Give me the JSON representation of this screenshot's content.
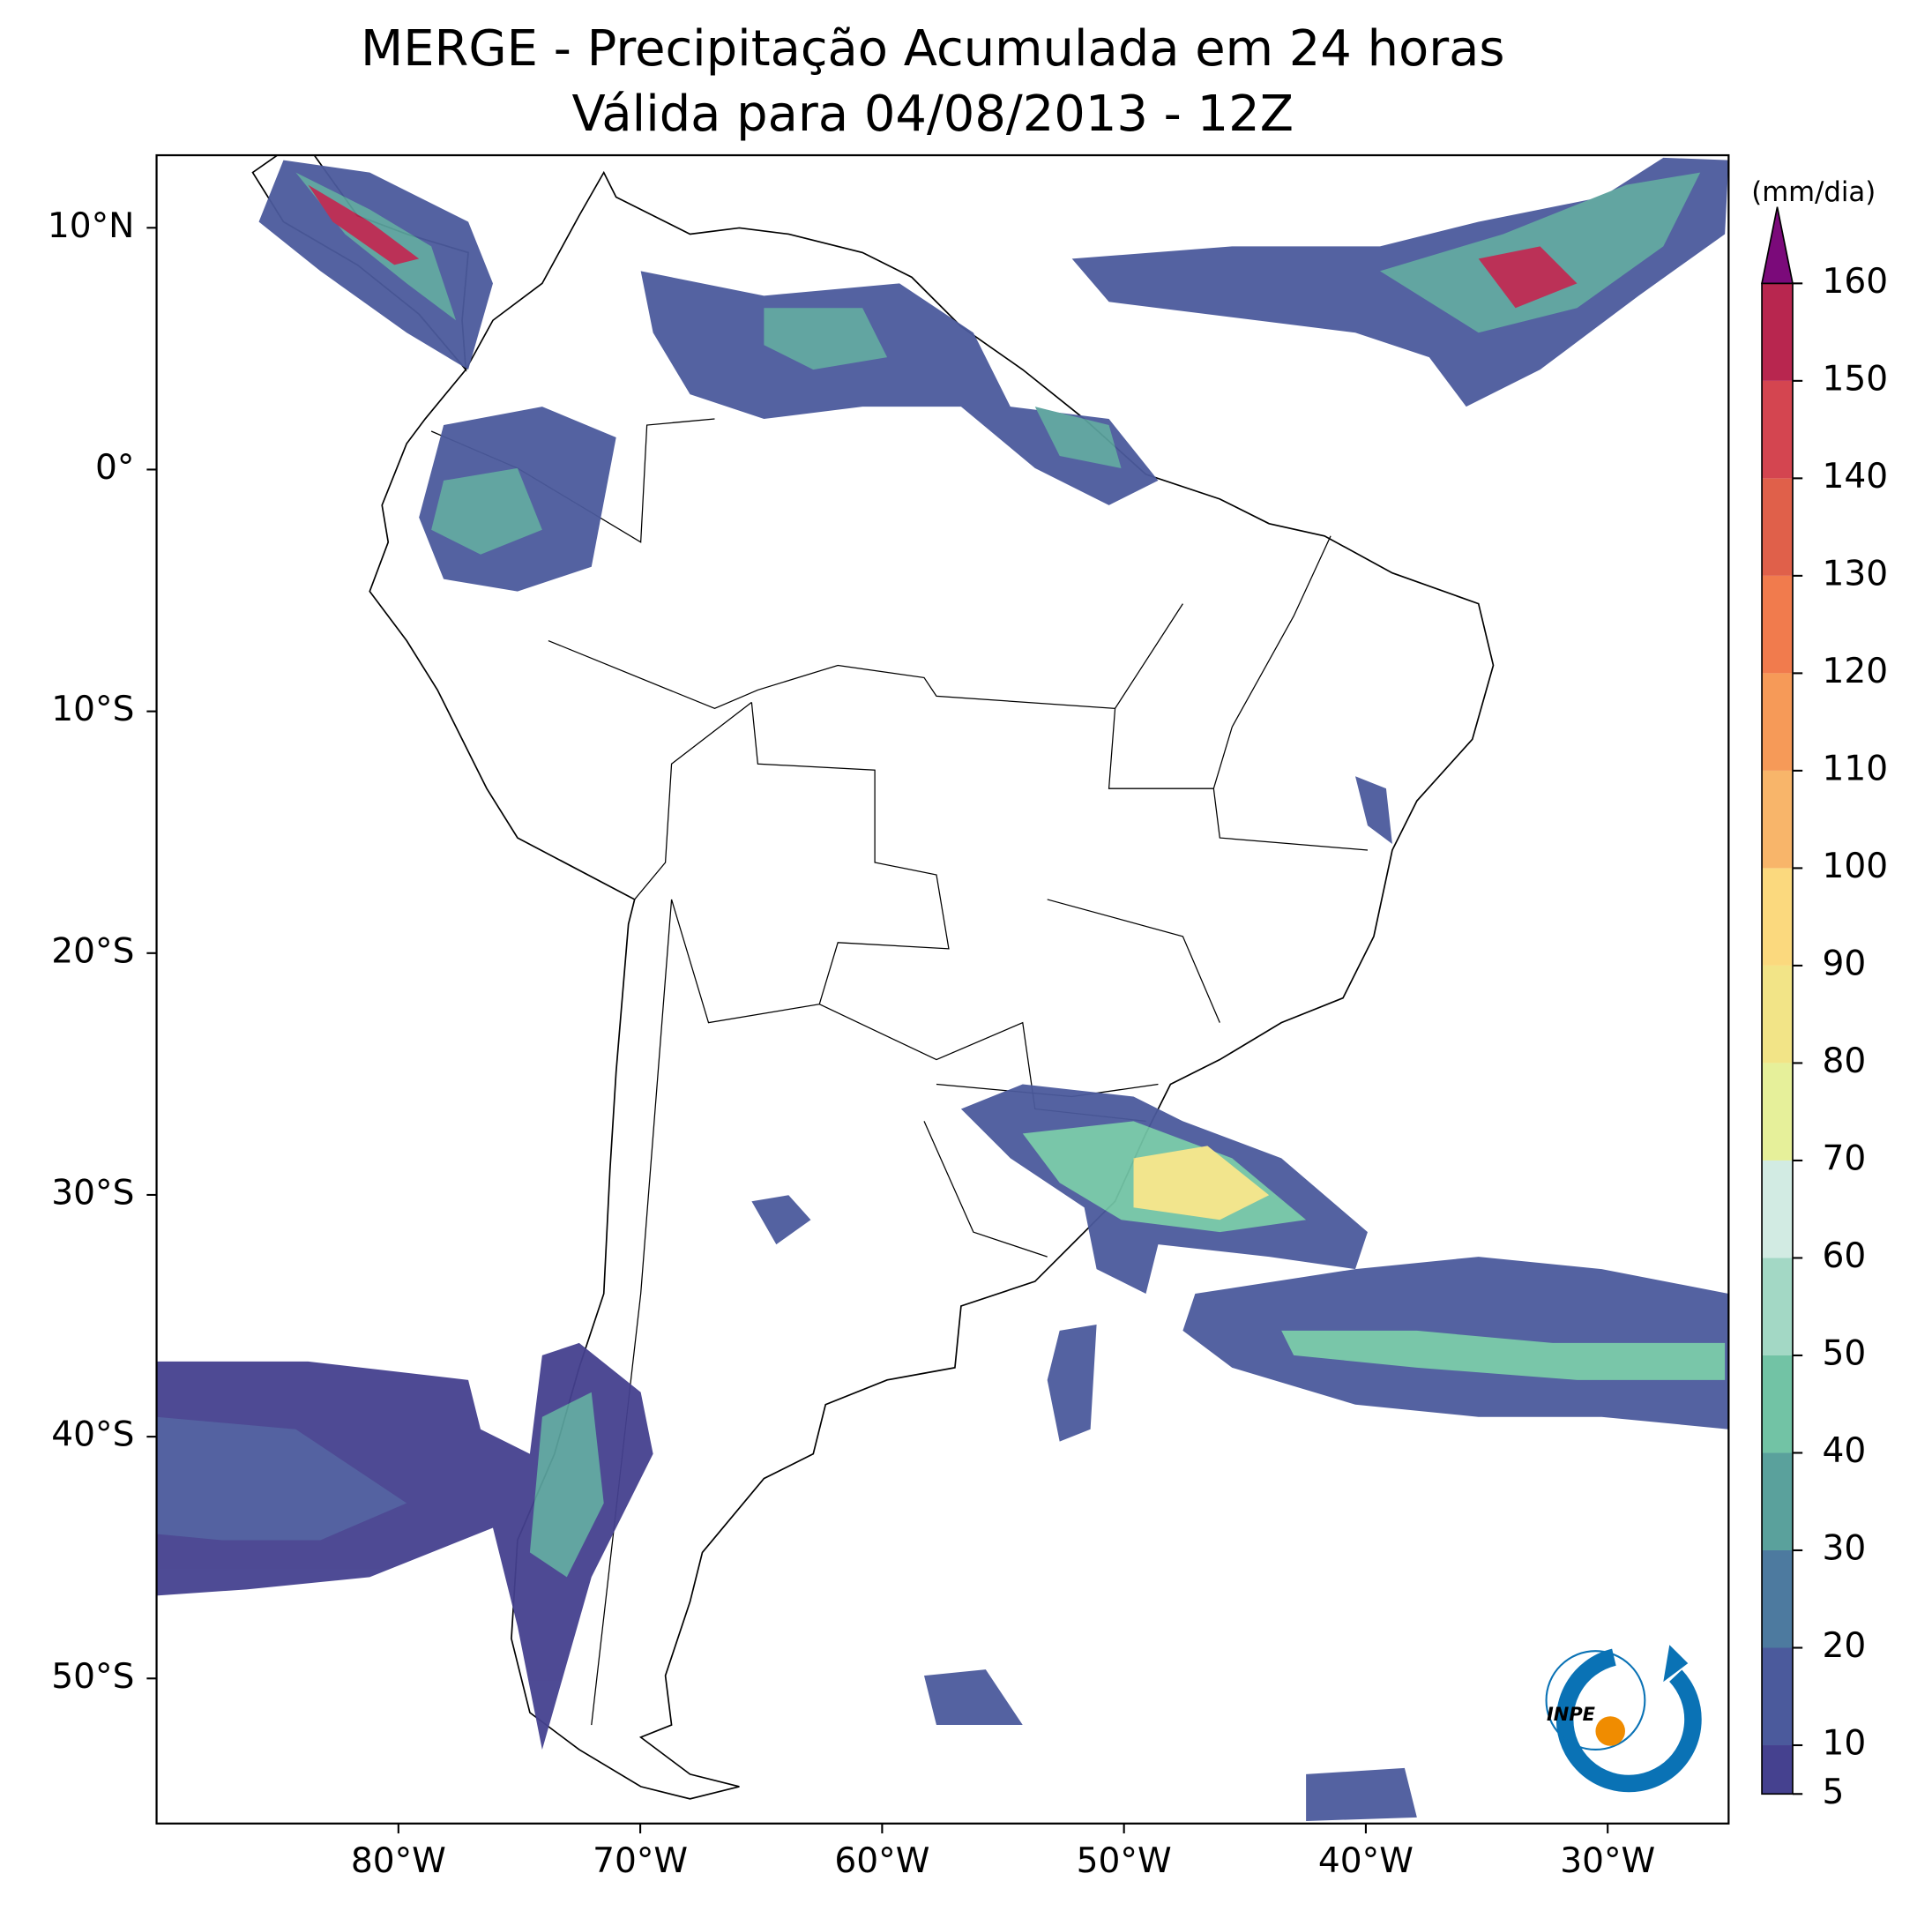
{
  "title": "MERGE - Precipitação Acumulada em 24 horas",
  "subtitle": "Válida para 04/08/2013 - 12Z",
  "map": {
    "lon_range": [
      -90,
      -25
    ],
    "lat_range": [
      -56,
      13
    ],
    "lon_ticks": [
      {
        "value": -80,
        "label": "80°W"
      },
      {
        "value": -70,
        "label": "70°W"
      },
      {
        "value": -60,
        "label": "60°W"
      },
      {
        "value": -50,
        "label": "50°W"
      },
      {
        "value": -40,
        "label": "40°W"
      },
      {
        "value": -30,
        "label": "30°W"
      }
    ],
    "lat_ticks": [
      {
        "value": 10,
        "label": "10°N"
      },
      {
        "value": 0,
        "label": "0°"
      },
      {
        "value": -10,
        "label": "10°S"
      },
      {
        "value": -20,
        "label": "20°S"
      },
      {
        "value": -30,
        "label": "30°S"
      },
      {
        "value": -40,
        "label": "40°S"
      },
      {
        "value": -50,
        "label": "50°S"
      }
    ]
  },
  "colorbar": {
    "label": "(mm/dia)",
    "range": [
      5,
      160
    ],
    "ticks": [
      5,
      10,
      20,
      30,
      40,
      50,
      60,
      70,
      80,
      90,
      100,
      110,
      120,
      130,
      140,
      150,
      160
    ],
    "colors": [
      "#45418f",
      "#4b5a9c",
      "#4d7a9f",
      "#5aa19c",
      "#72c3a5",
      "#a3d8c5",
      "#d2ebe3",
      "#e6f09a",
      "#f2e487",
      "#fbd97e",
      "#f8b56a",
      "#f69a58",
      "#f17b4d",
      "#e0604a",
      "#d44550",
      "#b8264f"
    ],
    "extend_color": "#7b0a7a"
  },
  "logo": "INPE"
}
